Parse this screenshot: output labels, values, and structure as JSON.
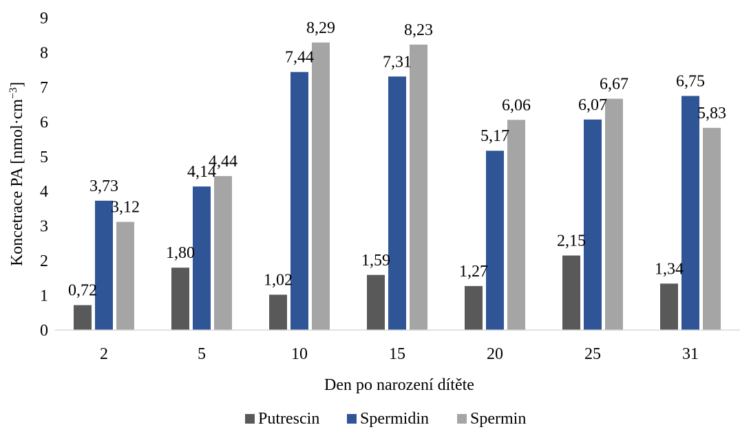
{
  "chart_data": {
    "type": "bar",
    "title": "",
    "xlabel": "Den po narození dítěte",
    "ylabel_main": "Koncetrace PA [nmol·cm",
    "ylabel_sup": "−3",
    "ylabel_end": "]",
    "ylim": [
      0,
      9
    ],
    "yticks": [
      "0",
      "1",
      "2",
      "3",
      "4",
      "5",
      "6",
      "7",
      "8",
      "9"
    ],
    "categories": [
      "2",
      "5",
      "10",
      "15",
      "20",
      "25",
      "31"
    ],
    "series": [
      {
        "name": "Putrescin",
        "color": "#595959",
        "values": [
          0.72,
          1.8,
          1.02,
          1.59,
          1.27,
          2.15,
          1.34
        ],
        "labels": [
          "0,72",
          "1,80",
          "1,02",
          "1,59",
          "1,27",
          "2,15",
          "1,34"
        ]
      },
      {
        "name": "Spermidin",
        "color": "#2F5597",
        "values": [
          3.73,
          4.14,
          7.44,
          7.31,
          5.17,
          6.07,
          6.75
        ],
        "labels": [
          "3,73",
          "4,14",
          "7,44",
          "7,31",
          "5,17",
          "6,07",
          "6,75"
        ]
      },
      {
        "name": "Spermin",
        "color": "#A5A5A5",
        "values": [
          3.12,
          4.44,
          8.29,
          8.23,
          6.06,
          6.67,
          5.83
        ],
        "labels": [
          "3,12",
          "4,44",
          "8,29",
          "8,23",
          "6,06",
          "6,67",
          "5,83"
        ]
      }
    ],
    "grid": false,
    "legend_position": "bottom"
  }
}
